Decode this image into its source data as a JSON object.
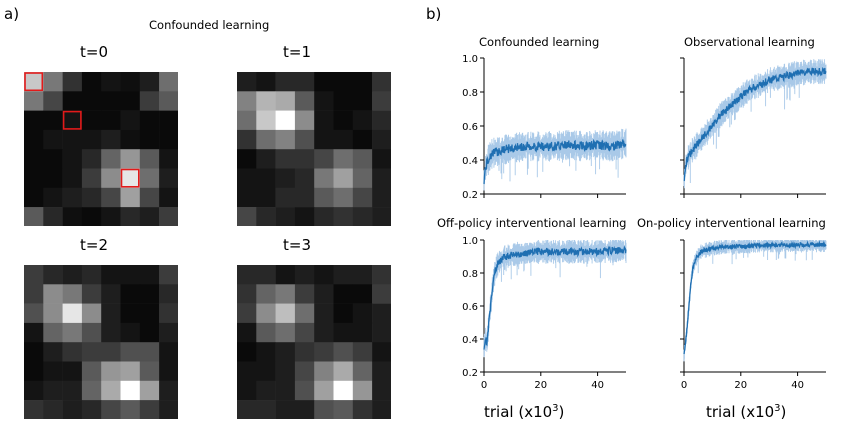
{
  "panel_a": {
    "label": "a)",
    "title": "Confounded learning",
    "grids": [
      {
        "label": "t=0",
        "values": [
          [
            200,
            120,
            50,
            10,
            20,
            15,
            30,
            110
          ],
          [
            120,
            70,
            10,
            10,
            10,
            10,
            60,
            90
          ],
          [
            10,
            10,
            20,
            10,
            10,
            20,
            10,
            10
          ],
          [
            10,
            20,
            20,
            20,
            30,
            15,
            10,
            10
          ],
          [
            10,
            10,
            20,
            40,
            100,
            150,
            90,
            20
          ],
          [
            10,
            10,
            20,
            60,
            140,
            230,
            110,
            30
          ],
          [
            10,
            20,
            30,
            40,
            70,
            160,
            70,
            20
          ],
          [
            90,
            40,
            15,
            10,
            20,
            40,
            30,
            60
          ]
        ],
        "highlights": [
          [
            0,
            0
          ],
          [
            2,
            2
          ],
          [
            5,
            5
          ]
        ]
      },
      {
        "label": "t=1",
        "values": [
          [
            30,
            20,
            40,
            40,
            10,
            10,
            10,
            50
          ],
          [
            130,
            180,
            170,
            90,
            20,
            10,
            10,
            60
          ],
          [
            110,
            200,
            255,
            140,
            20,
            10,
            20,
            40
          ],
          [
            50,
            110,
            130,
            80,
            20,
            20,
            10,
            30
          ],
          [
            10,
            30,
            50,
            50,
            70,
            110,
            90,
            20
          ],
          [
            20,
            20,
            30,
            40,
            120,
            160,
            100,
            30
          ],
          [
            20,
            20,
            40,
            40,
            90,
            110,
            70,
            30
          ],
          [
            70,
            40,
            30,
            20,
            40,
            50,
            40,
            30
          ]
        ],
        "highlights": []
      },
      {
        "label": "t=2",
        "values": [
          [
            60,
            40,
            30,
            40,
            20,
            20,
            20,
            60
          ],
          [
            60,
            140,
            120,
            60,
            30,
            10,
            10,
            40
          ],
          [
            80,
            140,
            230,
            140,
            30,
            10,
            10,
            50
          ],
          [
            20,
            100,
            120,
            80,
            30,
            20,
            10,
            30
          ],
          [
            10,
            30,
            50,
            60,
            60,
            80,
            80,
            20
          ],
          [
            10,
            20,
            20,
            90,
            150,
            160,
            90,
            20
          ],
          [
            20,
            30,
            30,
            100,
            170,
            255,
            160,
            30
          ],
          [
            50,
            40,
            30,
            40,
            70,
            90,
            60,
            30
          ]
        ],
        "highlights": []
      },
      {
        "label": "t=3",
        "values": [
          [
            40,
            40,
            20,
            30,
            20,
            30,
            30,
            50
          ],
          [
            50,
            100,
            120,
            60,
            30,
            10,
            10,
            60
          ],
          [
            60,
            140,
            190,
            110,
            30,
            10,
            20,
            30
          ],
          [
            20,
            90,
            110,
            70,
            30,
            20,
            20,
            30
          ],
          [
            10,
            20,
            30,
            50,
            60,
            80,
            60,
            20
          ],
          [
            20,
            20,
            30,
            70,
            130,
            170,
            100,
            30
          ],
          [
            20,
            30,
            30,
            80,
            160,
            255,
            150,
            30
          ],
          [
            40,
            40,
            30,
            30,
            80,
            90,
            50,
            30
          ]
        ],
        "highlights": []
      }
    ]
  },
  "panel_b": {
    "label": "b)",
    "xlabel": "trial (x10",
    "xlabel_sup": "3",
    "xlabel_close": ")",
    "colors": {
      "line": "#1f6fb2",
      "band": "#a9c9e8",
      "highlight": "#e21a1a"
    }
  },
  "chart_data": [
    {
      "type": "line",
      "title": "Confounded learning",
      "xlim": [
        0,
        50
      ],
      "ylim": [
        0.2,
        1.0
      ],
      "yticks": [
        0.2,
        0.4,
        0.6,
        0.8,
        1.0
      ],
      "xticks": [
        0,
        20,
        40
      ],
      "x": [
        0,
        0.5,
        1,
        2,
        3,
        5,
        7,
        10,
        15,
        20,
        25,
        30,
        35,
        40,
        45,
        50
      ],
      "y": [
        0.28,
        0.35,
        0.38,
        0.42,
        0.44,
        0.45,
        0.46,
        0.47,
        0.48,
        0.48,
        0.48,
        0.49,
        0.48,
        0.49,
        0.48,
        0.5
      ],
      "band": 0.06
    },
    {
      "type": "line",
      "title": "Observational learning",
      "xlim": [
        0,
        50
      ],
      "ylim": [
        0.2,
        1.0
      ],
      "yticks": [
        0.2,
        0.4,
        0.6,
        0.8,
        1.0
      ],
      "xticks": [
        0,
        20,
        40
      ],
      "x": [
        0,
        0.5,
        1,
        2,
        3,
        5,
        7,
        10,
        12,
        15,
        18,
        20,
        22,
        25,
        28,
        30,
        35,
        40,
        45,
        50
      ],
      "y": [
        0.28,
        0.36,
        0.4,
        0.43,
        0.46,
        0.5,
        0.54,
        0.6,
        0.65,
        0.7,
        0.74,
        0.77,
        0.8,
        0.83,
        0.85,
        0.87,
        0.89,
        0.91,
        0.92,
        0.92
      ],
      "band": 0.05
    },
    {
      "type": "line",
      "title": "Off-policy interventional learning",
      "xlim": [
        0,
        50
      ],
      "ylim": [
        0.2,
        1.0
      ],
      "yticks": [
        0.2,
        0.4,
        0.6,
        0.8,
        1.0
      ],
      "xticks": [
        0,
        20,
        40
      ],
      "x": [
        0,
        0.5,
        1,
        1.5,
        2,
        3,
        4,
        5,
        6,
        8,
        10,
        15,
        20,
        30,
        40,
        50
      ],
      "y": [
        0.35,
        0.4,
        0.38,
        0.45,
        0.55,
        0.72,
        0.82,
        0.86,
        0.88,
        0.9,
        0.91,
        0.92,
        0.93,
        0.93,
        0.93,
        0.94
      ],
      "band": 0.05
    },
    {
      "type": "line",
      "title": "On-policy interventional learning",
      "xlim": [
        0,
        50
      ],
      "ylim": [
        0.2,
        1.0
      ],
      "yticks": [
        0.2,
        0.4,
        0.6,
        0.8,
        1.0
      ],
      "xticks": [
        0,
        20,
        40
      ],
      "x": [
        0,
        0.5,
        1,
        1.5,
        2,
        2.5,
        3,
        4,
        5,
        6,
        8,
        10,
        15,
        20,
        30,
        40,
        50
      ],
      "y": [
        0.3,
        0.38,
        0.45,
        0.55,
        0.65,
        0.75,
        0.82,
        0.88,
        0.91,
        0.93,
        0.94,
        0.95,
        0.96,
        0.96,
        0.97,
        0.97,
        0.97
      ],
      "band": 0.03
    }
  ]
}
